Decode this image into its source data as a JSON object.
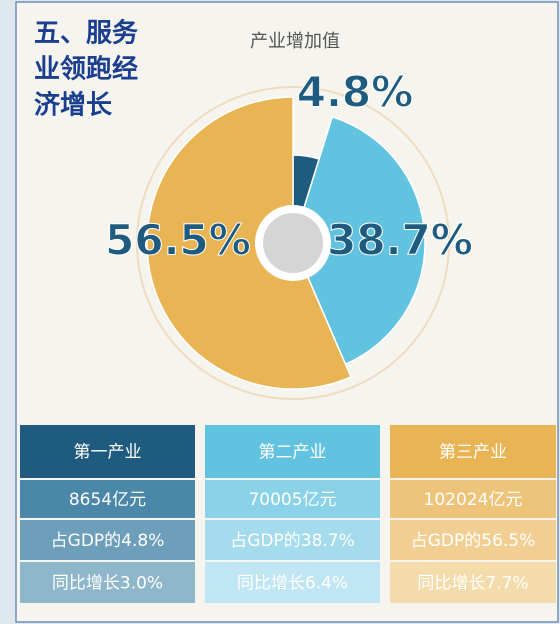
{
  "heading": [
    "五、服务",
    "业领跑经",
    "济增长"
  ],
  "chart_data": {
    "type": "pie",
    "title": "产业增加值",
    "categories": [
      "第一产业",
      "第二产业",
      "第三产业"
    ],
    "values": [
      4.8,
      38.7,
      56.5
    ],
    "value_labels": [
      "4.8%",
      "38.7%",
      "56.5%"
    ],
    "colors": [
      "#1e5b7e",
      "#62c3e0",
      "#e8b454"
    ]
  },
  "table": {
    "rows": [
      [
        "8654亿元",
        "70005亿元",
        "102024亿元"
      ],
      [
        "占GDP的4.8%",
        "占GDP的38.7%",
        "占GDP的56.5%"
      ],
      [
        "同比增长3.0%",
        "同比增长6.4%",
        "同比增长7.7%"
      ]
    ]
  }
}
